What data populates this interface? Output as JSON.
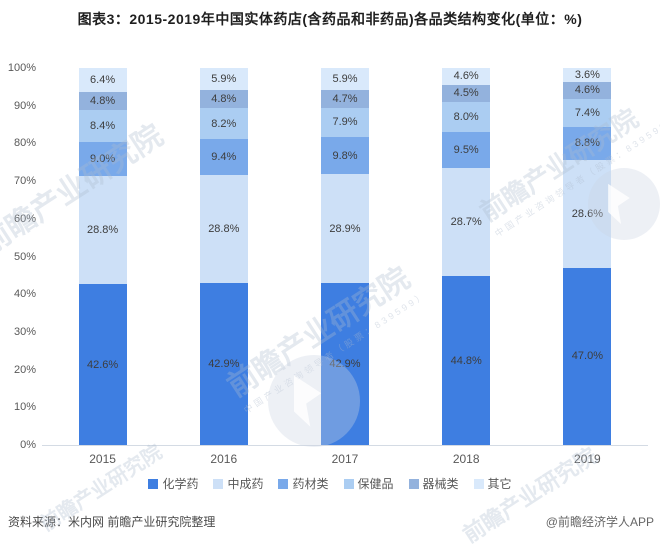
{
  "title": "图表3：2015-2019年中国实体药店(含药品和非药品)各品类结构变化(单位：%)",
  "chart_data": {
    "type": "bar",
    "stacked": true,
    "title": "图表3：2015-2019年中国实体药店(含药品和非药品)各品类结构变化(单位：%)",
    "categories": [
      "2015",
      "2016",
      "2017",
      "2018",
      "2019"
    ],
    "series": [
      {
        "name": "化学药",
        "color": "#3e7ee1",
        "values": [
          42.6,
          42.9,
          42.9,
          44.8,
          47.0
        ]
      },
      {
        "name": "中成药",
        "color": "#cde0f7",
        "values": [
          28.8,
          28.8,
          28.9,
          28.7,
          28.6
        ]
      },
      {
        "name": "药材类",
        "color": "#79a9ea",
        "values": [
          9.0,
          9.4,
          9.8,
          9.5,
          8.8
        ]
      },
      {
        "name": "保健品",
        "color": "#abcdf2",
        "values": [
          8.4,
          8.2,
          7.9,
          8.0,
          7.4
        ]
      },
      {
        "name": "器械类",
        "color": "#93b2dd",
        "values": [
          4.8,
          4.8,
          4.7,
          4.5,
          4.6
        ]
      },
      {
        "name": "其它",
        "color": "#d9e9fb",
        "values": [
          6.4,
          5.9,
          5.9,
          4.6,
          3.6
        ]
      }
    ],
    "ylim": [
      0,
      100
    ],
    "yticks": [
      "0%",
      "10%",
      "20%",
      "30%",
      "40%",
      "50%",
      "60%",
      "70%",
      "80%",
      "90%",
      "100%"
    ],
    "value_suffix": "%",
    "grid": false,
    "legend_position": "bottom"
  },
  "footer": {
    "source": "资料来源：米内网 前瞻产业研究院整理",
    "credit": "@前瞻经济学人APP"
  },
  "watermark": {
    "text": "前瞻产业研究院",
    "subtext": "中国产业咨询领导者（股票：839599）"
  }
}
